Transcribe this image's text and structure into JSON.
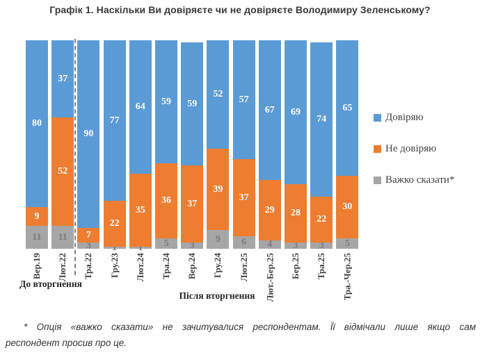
{
  "chart_data": {
    "type": "bar",
    "stacked": true,
    "title": "Графік 1. Наскільки Ви довіряєте чи не довіряєте Володимиру Зеленському?",
    "categories": [
      "Вер.19",
      "Лют.22",
      "Тра.22",
      "Гру.23",
      "Лют.24",
      "Тра.24",
      "Вер.24",
      "Гру.24",
      "Лют.25",
      "Лют.-Бер.25",
      "Бер.25",
      "Тра.25",
      "Тра.-Чер.25"
    ],
    "series": [
      {
        "name": "Довіряю",
        "color": "#5B9BD5",
        "label_color": "#FFFFFF",
        "values": [
          80,
          37,
          90,
          77,
          64,
          59,
          59,
          52,
          57,
          67,
          69,
          74,
          65
        ]
      },
      {
        "name": "Не довіряю",
        "color": "#ED7D31",
        "label_color": "#FFFFFF",
        "values": [
          9,
          52,
          7,
          22,
          35,
          36,
          37,
          39,
          37,
          29,
          28,
          22,
          30
        ]
      },
      {
        "name": "Важко сказати*",
        "color": "#A6A6A6",
        "label_color": "#7F7F7F",
        "values": [
          11,
          11,
          3,
          1,
          1,
          5,
          3,
          9,
          6,
          4,
          3,
          3,
          5
        ]
      }
    ],
    "ylim": [
      0,
      100
    ],
    "grid": false,
    "legend_position": "right",
    "separator_after_index": 1,
    "groups": [
      {
        "label": "До вторгнення",
        "from": 0,
        "to": 1
      },
      {
        "label": "Після вторгнення",
        "from": 2,
        "to": 12
      }
    ]
  },
  "footnote": {
    "line1": "* Опція «важко сказати» не зачитувалися респондентам. Її відмічали лише якщо сам",
    "line2": "респондент просив про це."
  }
}
